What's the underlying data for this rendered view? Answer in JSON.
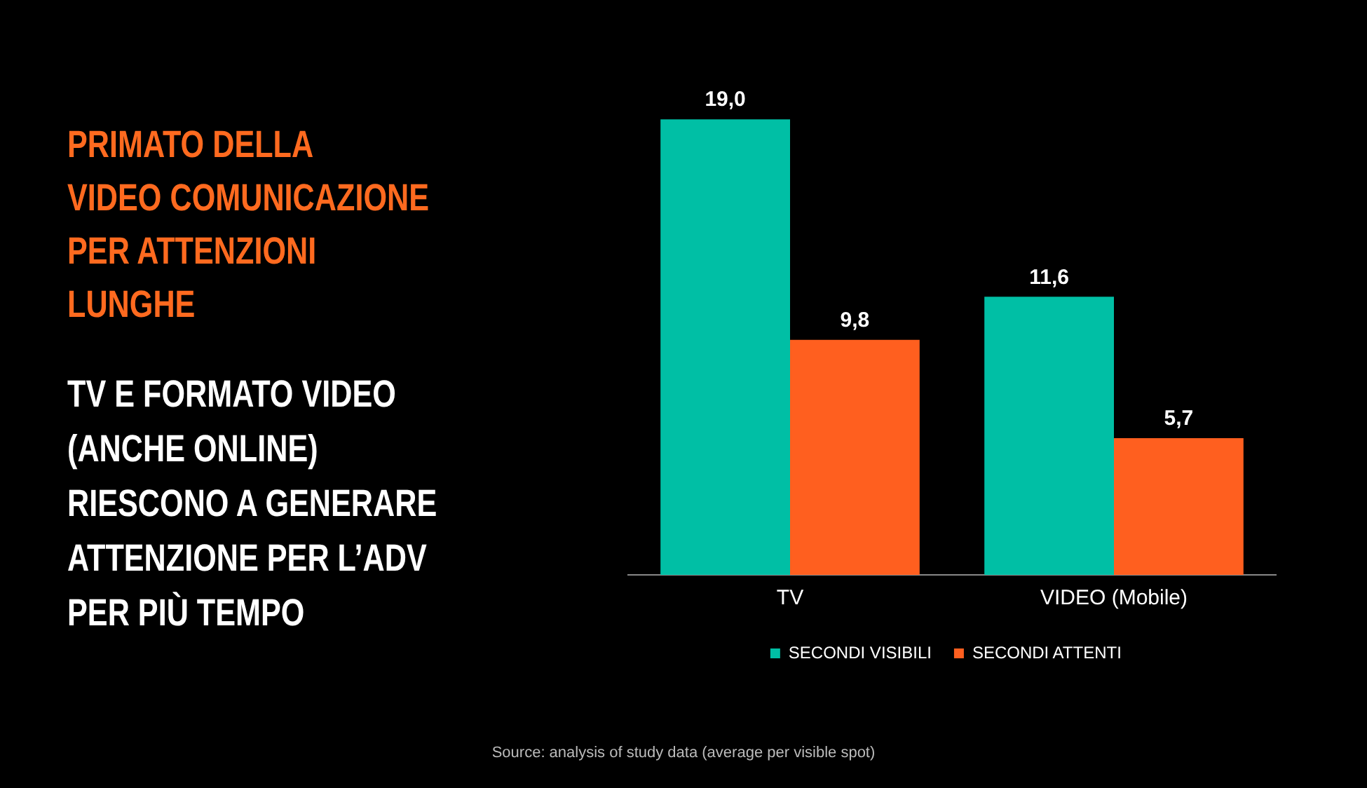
{
  "chart_data": {
    "type": "bar",
    "title": "PRIMATO DELLA\nVIDEO COMUNICAZIONE\nPER ATTENZIONI\nLUNGHE",
    "subtitle": "TV E FORMATO VIDEO\n(ANCHE ONLINE)\nRIESCONO A GENERARE\nATTENZIONE PER L’ADV\nPER PIÙ TEMPO",
    "categories": [
      "TV",
      "VIDEO (Mobile)"
    ],
    "series": [
      {
        "name": "SECONDI VISIBILI",
        "color": "#00bfa5",
        "values": [
          19.0,
          11.6
        ],
        "value_labels": [
          "19,0",
          "11,6"
        ]
      },
      {
        "name": "SECONDI ATTENTI",
        "color": "#ff5f1f",
        "values": [
          9.8,
          5.7
        ],
        "value_labels": [
          "9,8",
          "5,7"
        ]
      }
    ],
    "relative": false,
    "grid": false,
    "legend": "bottom",
    "annotations": [
      "Source: analysis of study data (average per visible spot)"
    ]
  }
}
